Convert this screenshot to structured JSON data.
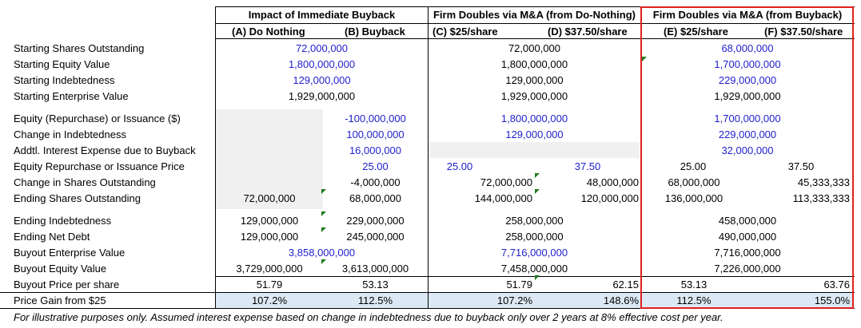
{
  "headers": {
    "group1": "Impact of Immediate Buyback",
    "group2": "Firm Doubles via M&A (from Do-Nothing)",
    "group3": "Firm Doubles via M&A (from Buyback)"
  },
  "subheaders": {
    "a": "(A) Do Nothing",
    "b": "(B) Buyback",
    "c": "(C) $25/share",
    "d": "(D) $37.50/share",
    "e": "(E) $25/share",
    "f": "(F) $37.50/share"
  },
  "rows": {
    "start_shares": {
      "label": "Starting Shares Outstanding",
      "ab": "72,000,000",
      "cd": "72,000,000",
      "ef": "68,000,000"
    },
    "start_equity": {
      "label": "Starting Equity Value",
      "ab": "1,800,000,000",
      "cd": "1,800,000,000",
      "ef": "1,700,000,000"
    },
    "start_debt": {
      "label": "Starting Indebtedness",
      "ab": "129,000,000",
      "cd": "129,000,000",
      "ef": "229,000,000"
    },
    "start_ev": {
      "label": "Starting Enterprise Value",
      "ab": "1,929,000,000",
      "cd": "1,929,000,000",
      "ef": "1,929,000,000"
    },
    "equity_issue": {
      "label": "Equity (Repurchase) or Issuance ($)",
      "b": "-100,000,000",
      "cd": "1,800,000,000",
      "ef": "1,700,000,000"
    },
    "change_debt": {
      "label": "Change in Indebtedness",
      "b": "100,000,000",
      "cd": "129,000,000",
      "ef": "229,000,000"
    },
    "addtl_interest": {
      "label": "Addtl. Interest Expense due to Buyback",
      "b": "16,000,000",
      "ef": "32,000,000"
    },
    "repurchase_price": {
      "label": "Equity Repurchase or Issuance Price",
      "b": "25.00",
      "c": "25.00",
      "d": "37.50",
      "e": "25.00",
      "f": "37.50"
    },
    "change_shares": {
      "label": "Change in Shares Outstanding",
      "b": "-4,000,000",
      "c": "72,000,000",
      "d": "48,000,000",
      "e": "68,000,000",
      "f": "45,333,333"
    },
    "end_shares": {
      "label": "Ending Shares Outstanding",
      "a": "72,000,000",
      "b": "68,000,000",
      "c": "144,000,000",
      "d": "120,000,000",
      "e": "136,000,000",
      "f": "113,333,333"
    },
    "end_debt": {
      "label": "Ending Indebtedness",
      "a": "129,000,000",
      "b": "229,000,000",
      "cd": "258,000,000",
      "ef": "458,000,000"
    },
    "end_net_debt": {
      "label": "Ending Net Debt",
      "a": "129,000,000",
      "b": "245,000,000",
      "cd": "258,000,000",
      "ef": "490,000,000"
    },
    "buyout_ev": {
      "label": "Buyout Enterprise Value",
      "ab": "3,858,000,000",
      "cd": "7,716,000,000",
      "ef": "7,716,000,000"
    },
    "buyout_equity": {
      "label": "Buyout Equity Value",
      "a": "3,729,000,000",
      "b": "3,613,000,000",
      "cd": "7,458,000,000",
      "ef": "7,226,000,000"
    },
    "buyout_price": {
      "label": "Buyout Price per share",
      "a": "51.79",
      "b": "53.13",
      "c": "51.79",
      "d": "62.15",
      "e": "53.13",
      "f": "63.76"
    },
    "price_gain": {
      "label": "Price Gain from $25",
      "a": "107.2%",
      "b": "112.5%",
      "c": "107.2%",
      "d": "148.6%",
      "e": "112.5%",
      "f": "155.0%"
    }
  },
  "footnote": "For illustrative purposes only. Assumed interest expense based on change in indebtedness due to buyback only over 2 years at 8% effective cost per year.",
  "colors": {
    "input_blue": "#1f1fcc",
    "highlight_red": "#e02020",
    "gain_fill": "#dce9f4",
    "grey_fill": "#f0f0f0",
    "flag_green": "#1e7b1e"
  }
}
